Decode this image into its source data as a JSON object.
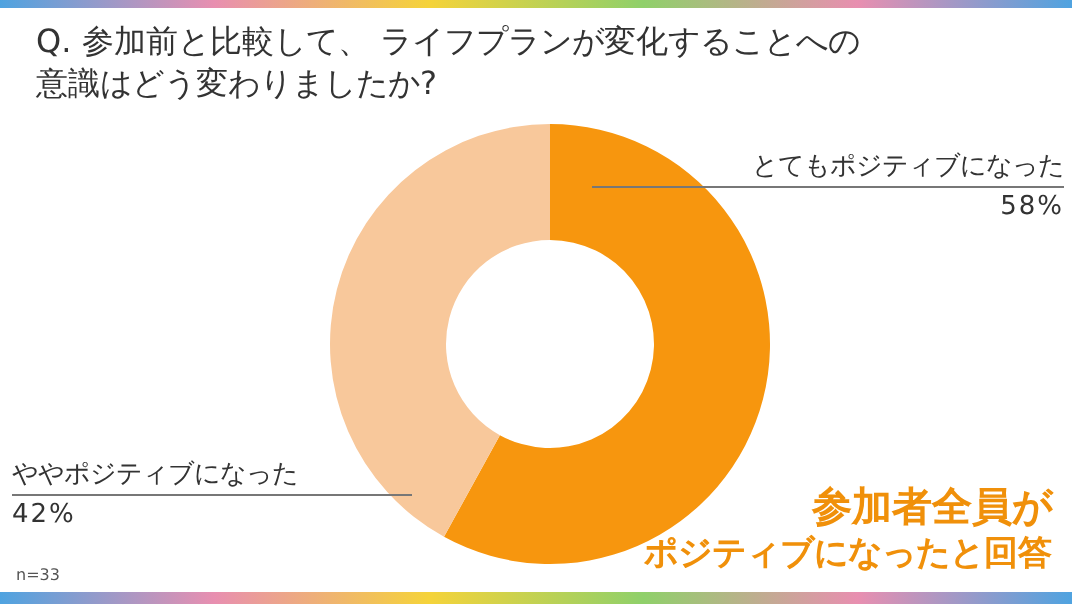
{
  "chart_data": {
    "type": "donut",
    "title": "Q. 参加前と比較して、 ライフプランが変化することへの意識はどう変わりましたか?",
    "categories": [
      "とてもポジティブになった",
      "ややポジティブになった"
    ],
    "values": [
      58,
      42
    ],
    "value_labels": [
      "58%",
      "42%"
    ],
    "colors": [
      "#f7960e",
      "#f8c89b"
    ],
    "annotations": [
      "参加者全員が",
      "ポジティブになったと回答",
      "n=33"
    ]
  }
}
